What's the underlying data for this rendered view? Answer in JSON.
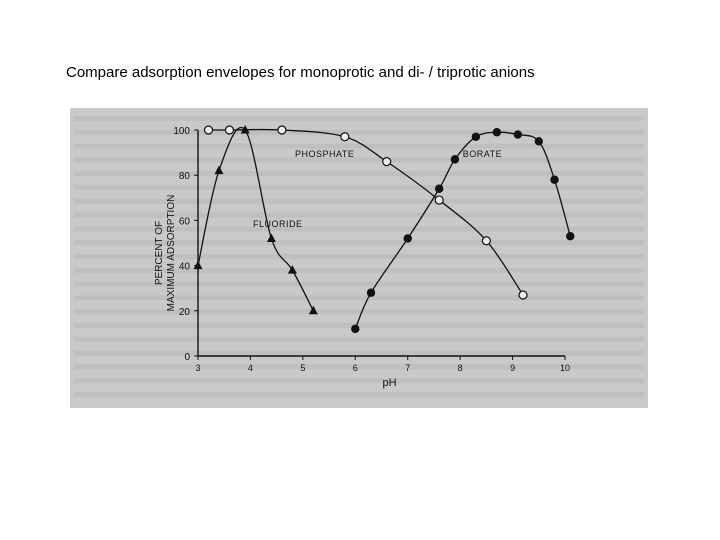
{
  "slide": {
    "title": "Compare adsorption envelopes for monoprotic and di- / triprotic anions"
  },
  "chart_data": {
    "type": "line",
    "title": "",
    "xlabel": "pH",
    "ylabel": "PERCENT OF MAXIMUM ADSORPTION",
    "xlim": [
      3,
      10
    ],
    "ylim": [
      0,
      100
    ],
    "x_ticks": [
      "3",
      "4",
      "5",
      "6",
      "7",
      "8",
      "9",
      "10"
    ],
    "y_ticks": [
      "0",
      "20",
      "40",
      "60",
      "80",
      "100"
    ],
    "grid": false,
    "legend": "labels on curves",
    "series": [
      {
        "name": "PHOSPHATE",
        "marker": "open-circle",
        "points": [
          [
            3.2,
            100
          ],
          [
            3.6,
            100
          ],
          [
            4.6,
            100
          ],
          [
            5.8,
            97
          ],
          [
            6.6,
            86
          ],
          [
            7.6,
            69
          ],
          [
            8.5,
            51
          ],
          [
            9.2,
            27
          ]
        ]
      },
      {
        "name": "FLUORIDE",
        "marker": "filled-triangle",
        "points": [
          [
            3.0,
            40
          ],
          [
            3.4,
            82
          ],
          [
            3.9,
            100
          ],
          [
            4.4,
            52
          ],
          [
            4.8,
            38
          ],
          [
            5.2,
            20
          ]
        ]
      },
      {
        "name": "BORATE",
        "marker": "filled-circle",
        "points": [
          [
            6.0,
            12
          ],
          [
            6.3,
            28
          ],
          [
            7.0,
            52
          ],
          [
            7.6,
            74
          ],
          [
            7.9,
            87
          ],
          [
            8.3,
            97
          ],
          [
            8.7,
            99
          ],
          [
            9.1,
            98
          ],
          [
            9.5,
            95
          ],
          [
            9.8,
            78
          ],
          [
            10.1,
            53
          ]
        ]
      }
    ],
    "colors": {
      "scan_background": "#c9c9c9",
      "ink": "#111111"
    }
  }
}
